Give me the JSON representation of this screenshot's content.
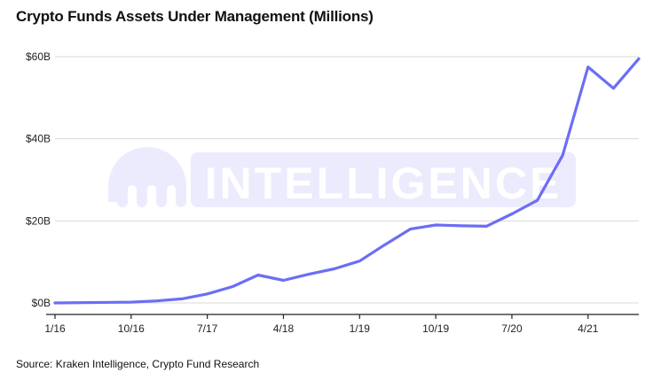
{
  "chart_data": {
    "type": "line",
    "title": "Crypto Funds Assets Under Management (Millions)",
    "xlabel": "",
    "ylabel": "",
    "ylim": [
      0,
      60
    ],
    "grid": true,
    "watermark": "INTELLIGENCE",
    "line_color": "#6b6ef5",
    "x_ticks": [
      "1/16",
      "10/16",
      "7/17",
      "4/18",
      "1/19",
      "10/19",
      "7/20",
      "4/21"
    ],
    "y_ticks": [
      "$0B",
      "$20B",
      "$40B",
      "$60B"
    ],
    "y_tick_values": [
      0,
      20,
      40,
      60
    ],
    "series": [
      {
        "x": [
          "2016-01",
          "2016-10",
          "2017-01",
          "2017-04",
          "2017-07",
          "2017-10",
          "2018-01",
          "2018-04",
          "2018-07",
          "2018-10",
          "2019-01",
          "2019-04",
          "2019-07",
          "2019-10",
          "2020-01",
          "2020-04",
          "2020-07",
          "2020-10",
          "2021-01",
          "2021-04",
          "2021-07",
          "2021-10"
        ],
        "values": [
          0,
          0.2,
          0.5,
          1.0,
          2.2,
          4.0,
          6.8,
          5.5,
          7.0,
          8.3,
          10.2,
          14.2,
          18.0,
          19.0,
          18.8,
          18.7,
          21.7,
          25.0,
          36.0,
          57.5,
          52.3,
          59.5
        ]
      }
    ]
  },
  "source": "Source: Kraken Intelligence, Crypto Fund Research"
}
